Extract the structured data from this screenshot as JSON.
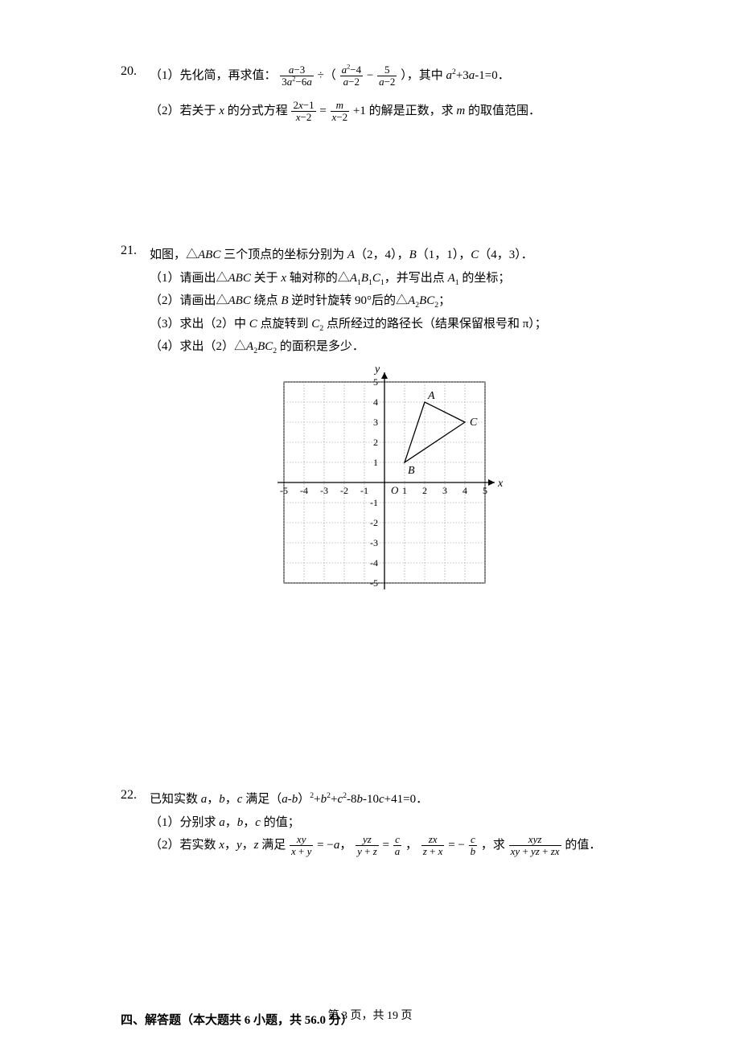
{
  "p20": {
    "num": "20.",
    "part1_prefix": "（1）先化简，再求值：",
    "part1_f1_num": "a−3",
    "part1_f1_den": "3a²−6a",
    "part1_div": "÷（",
    "part1_f2_num": "a²−4",
    "part1_f2_den": "a−2",
    "part1_minus": "−",
    "part1_f3_num": "5",
    "part1_f3_den": "a−2",
    "part1_close": "），其中 ",
    "part1_cond": "a²+3a-1=0．",
    "part2_prefix": "（2）若关于 x 的分式方程",
    "part2_f1_num": "2x−1",
    "part2_f1_den": "x−2",
    "part2_eq": "=",
    "part2_f2_num": "m",
    "part2_f2_den": "x−2",
    "part2_plus": "+1 的解是正数，求 m 的取值范围．"
  },
  "p21": {
    "num": "21.",
    "stem": "如图，△ABC 三个顶点的坐标分别为 A（2，4），B（1，1），C（4，3）．",
    "s1": "（1）请画出△ABC 关于 x 轴对称的△A₁B₁C₁，并写出点 A₁ 的坐标；",
    "s2": "（2）请画出△ABC 绕点 B 逆时针旋转 90°后的△A₂BC₂；",
    "s3": "（3）求出（2）中 C 点旋转到 C₂ 点所经过的路径长（结果保留根号和 π）；",
    "s4": "（4）求出（2）△A₂BC₂ 的面积是多少．",
    "grid": {
      "unit": 25,
      "range": 5,
      "axis_color": "#000000",
      "grid_color": "#888888",
      "points": {
        "A": {
          "x": 2,
          "y": 4,
          "label": "A"
        },
        "B": {
          "x": 1,
          "y": 1,
          "label": "B"
        },
        "C": {
          "x": 4,
          "y": 3,
          "label": "C"
        }
      },
      "origin_label": "O",
      "x_label": "x",
      "y_label": "y"
    }
  },
  "p22": {
    "num": "22.",
    "stem": "已知实数 a，b，c 满足（a-b）²+b²+c²-8b-10c+41=0．",
    "s1": "（1）分别求 a，b，c 的值；",
    "s2_prefix": "（2）若实数 x，y，z 满足",
    "s2_f1_num": "xy",
    "s2_f1_den": "x + y",
    "s2_eq1": " = −a，",
    "s2_f2_num": "yz",
    "s2_f2_den": "y + z",
    "s2_eq2": " = ",
    "s2_f2r_num": "c",
    "s2_f2r_den": "a",
    "s2_comma2": "，",
    "s2_f3_num": "zx",
    "s2_f3_den": "z + x",
    "s2_eq3": " = −",
    "s2_f3r_num": "c",
    "s2_f3r_den": "b",
    "s2_comma3": "，求",
    "s2_f4_num": "xyz",
    "s2_f4_den": "xy + yz + zx",
    "s2_tail": "的值．"
  },
  "section4": "四、解答题（本大题共 6 小题，共 56.0 分）",
  "footer": "第 3 页，共 19 页"
}
